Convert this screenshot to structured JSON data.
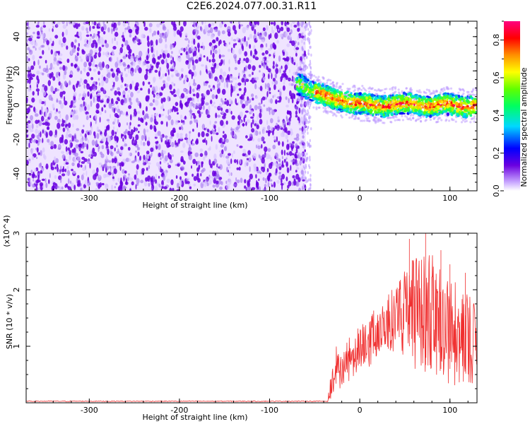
{
  "title": "C2E6.2024.077.00.31.R11",
  "chart_data": [
    {
      "type": "heatmap",
      "xlabel": "Height of straight line (km)",
      "ylabel": "Frequency (Hz)",
      "xlim": [
        -370,
        130
      ],
      "ylim": [
        -50,
        49
      ],
      "x_ticks": [
        -300,
        -200,
        -100,
        0,
        100
      ],
      "y_ticks": [
        -40,
        -20,
        0,
        20,
        40
      ],
      "noise_region": {
        "x_range": [
          -370,
          -60
        ],
        "description_level": 0.15
      },
      "signal_band": {
        "x_range": [
          -70,
          130
        ],
        "center_freq": [
          {
            "x": -65,
            "y": 12
          },
          {
            "x": -55,
            "y": 8
          },
          {
            "x": -45,
            "y": 7
          },
          {
            "x": -35,
            "y": 5
          },
          {
            "x": -25,
            "y": 3
          },
          {
            "x": -15,
            "y": 2
          },
          {
            "x": -5,
            "y": 1
          },
          {
            "x": 5,
            "y": 1
          },
          {
            "x": 15,
            "y": 0
          },
          {
            "x": 25,
            "y": -1
          },
          {
            "x": 35,
            "y": 0
          },
          {
            "x": 45,
            "y": 1
          },
          {
            "x": 55,
            "y": 1
          },
          {
            "x": 65,
            "y": 0
          },
          {
            "x": 75,
            "y": -1
          },
          {
            "x": 85,
            "y": 0
          },
          {
            "x": 95,
            "y": 1
          },
          {
            "x": 105,
            "y": 0
          },
          {
            "x": 115,
            "y": -1
          },
          {
            "x": 130,
            "y": 0
          }
        ],
        "half_width_hz": 6
      },
      "colorbar": {
        "label": "Normalized spectral amplitude",
        "range": [
          0,
          0.9
        ],
        "ticks": [
          "0.0",
          "0.2",
          "0.4",
          "0.6",
          "0.8"
        ],
        "tick_values": [
          0.0,
          0.2,
          0.4,
          0.6,
          0.8
        ]
      }
    },
    {
      "type": "line",
      "xlabel": "Height of straight line (km)",
      "ylabel": "SNR (10 * v/v)",
      "y_multiplier": "(x10^4)",
      "xlim": [
        -370,
        130
      ],
      "ylim": [
        0,
        3
      ],
      "x_ticks": [
        -300,
        -200,
        -100,
        0,
        100
      ],
      "y_ticks": [
        1,
        2,
        3
      ],
      "color": "#f03030",
      "baseline_until_x": -35,
      "envelope": [
        {
          "x": -35,
          "lo": 0.05,
          "hi": 0.2
        },
        {
          "x": -28,
          "lo": 0.1,
          "hi": 1.0
        },
        {
          "x": -20,
          "lo": 0.3,
          "hi": 1.0
        },
        {
          "x": -10,
          "lo": 0.4,
          "hi": 1.2
        },
        {
          "x": 0,
          "lo": 0.5,
          "hi": 1.35
        },
        {
          "x": 10,
          "lo": 0.6,
          "hi": 1.5
        },
        {
          "x": 20,
          "lo": 0.8,
          "hi": 1.75
        },
        {
          "x": 30,
          "lo": 0.9,
          "hi": 1.95
        },
        {
          "x": 40,
          "lo": 0.9,
          "hi": 2.05
        },
        {
          "x": 50,
          "lo": 0.8,
          "hi": 2.35
        },
        {
          "x": 60,
          "lo": 0.6,
          "hi": 2.6
        },
        {
          "x": 70,
          "lo": 0.4,
          "hi": 2.75
        },
        {
          "x": 80,
          "lo": 0.3,
          "hi": 2.65
        },
        {
          "x": 90,
          "lo": 0.3,
          "hi": 2.5
        },
        {
          "x": 100,
          "lo": 0.3,
          "hi": 2.2
        },
        {
          "x": 110,
          "lo": 0.3,
          "hi": 2.1
        },
        {
          "x": 120,
          "lo": 0.3,
          "hi": 1.9
        },
        {
          "x": 130,
          "lo": 0.4,
          "hi": 1.8
        }
      ],
      "peaks": [
        {
          "x": 55,
          "y": 2.9
        },
        {
          "x": 73,
          "y": 3.0
        },
        {
          "x": 90,
          "y": 2.7
        },
        {
          "x": 100,
          "y": 2.45
        },
        {
          "x": 117,
          "y": 2.3
        }
      ]
    }
  ]
}
